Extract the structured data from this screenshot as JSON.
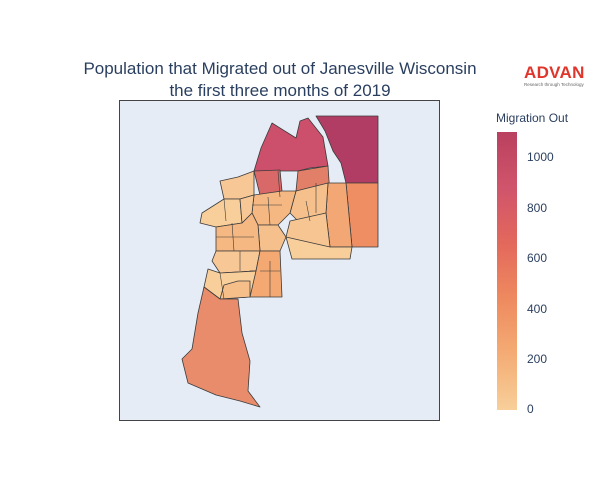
{
  "title": {
    "line1": "Population that Migrated out of Janesville Wisconsin",
    "line2": "the first three months of 2019"
  },
  "logo": {
    "name": "ADVAN",
    "tagline": "Research through Technology"
  },
  "legend": {
    "title": "Migration Out",
    "ticks": [
      "1000",
      "800",
      "600",
      "400",
      "200",
      "0"
    ],
    "scale_min": 0,
    "scale_max": 1100
  },
  "colors": {
    "low": "#f8cf9a",
    "mid": "#ee8a5f",
    "high": "#b9405f",
    "map_background": "#e5ecf6"
  }
}
